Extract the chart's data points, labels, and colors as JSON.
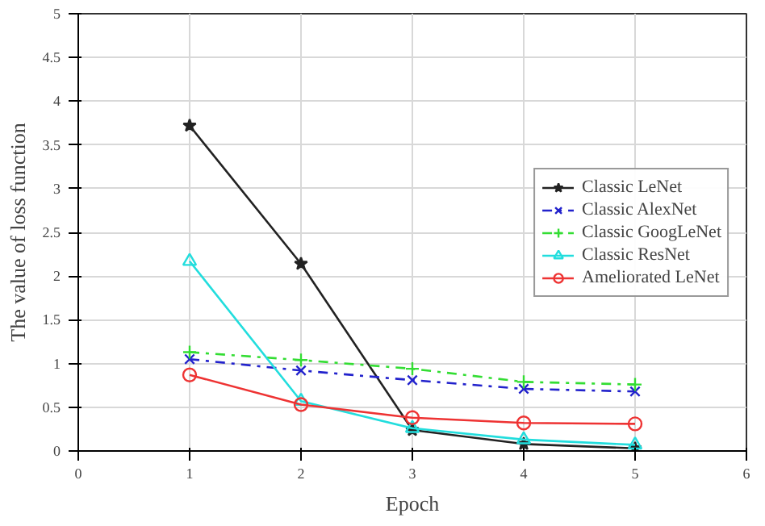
{
  "chart_data": {
    "type": "line",
    "xlabel": "Epoch",
    "ylabel": "The value of loss function",
    "x": [
      1,
      2,
      3,
      4,
      5
    ],
    "xlim": [
      0,
      6
    ],
    "xticks": [
      0,
      1,
      2,
      3,
      4,
      5,
      6
    ],
    "ylim": [
      0,
      5
    ],
    "yticks": [
      0,
      0.5,
      1,
      1.5,
      2,
      2.5,
      3,
      3.5,
      4,
      4.5,
      5
    ],
    "grid": true,
    "legend": "right",
    "series": [
      {
        "name": "Classic LeNet",
        "color": "#222222",
        "values": [
          3.72,
          2.14,
          0.24,
          0.08,
          0.03
        ],
        "marker": "star",
        "line_style": "solid"
      },
      {
        "name": "Classic AlexNet",
        "color": "#2222cc",
        "values": [
          1.05,
          0.92,
          0.81,
          0.71,
          0.68
        ],
        "marker": "x",
        "line_style": "dashdot"
      },
      {
        "name": "Classic GoogLeNet",
        "color": "#33dd33",
        "values": [
          1.13,
          1.04,
          0.94,
          0.79,
          0.76
        ],
        "marker": "cross",
        "line_style": "dashdot"
      },
      {
        "name": "Classic ResNet",
        "color": "#22dddd",
        "values": [
          2.17,
          0.57,
          0.26,
          0.13,
          0.07
        ],
        "marker": "triangle",
        "line_style": "solid"
      },
      {
        "name": "Ameliorated LeNet",
        "color": "#ee3333",
        "values": [
          0.87,
          0.53,
          0.38,
          0.32,
          0.31
        ],
        "marker": "circle",
        "line_style": "solid"
      }
    ]
  }
}
